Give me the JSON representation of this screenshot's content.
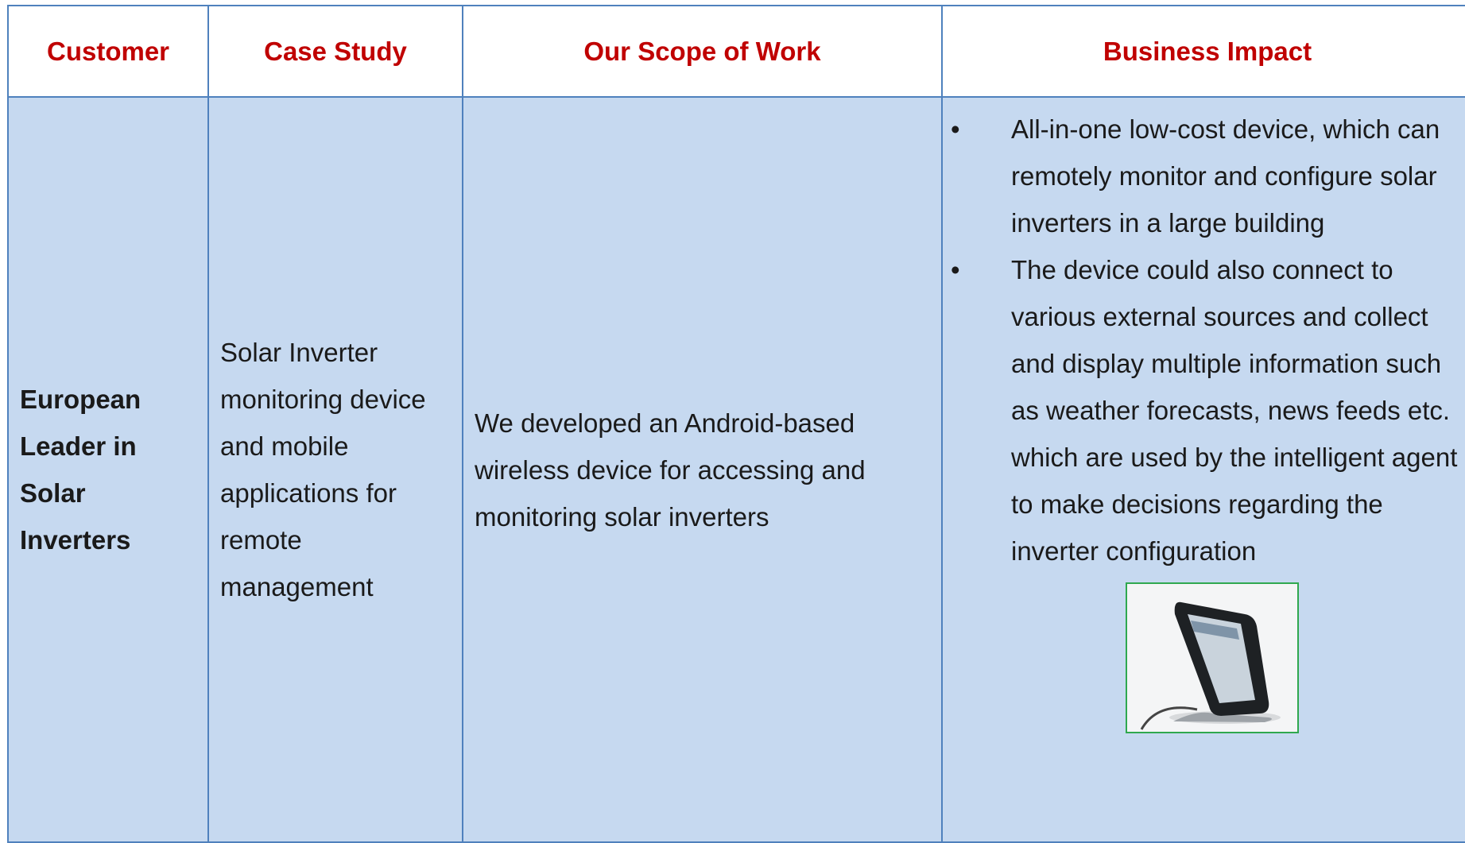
{
  "header": {
    "columns": [
      "Customer",
      "Case Study",
      "Our Scope of Work",
      "Business Impact"
    ]
  },
  "rows": [
    {
      "customer": "European Leader in Solar Inverters",
      "case_study": "Solar Inverter monitoring device and mobile applications for remote management",
      "scope": "We developed an Android-based wireless device for accessing and monitoring solar inverters",
      "impact": [
        "All-in-one low-cost device, which can remotely monitor and configure solar inverters in a large building",
        "The device could also connect to various external sources and collect and display multiple information such as weather forecasts, news feeds etc. which are used by the intelligent agent to make decisions regarding the inverter configuration"
      ]
    }
  ]
}
